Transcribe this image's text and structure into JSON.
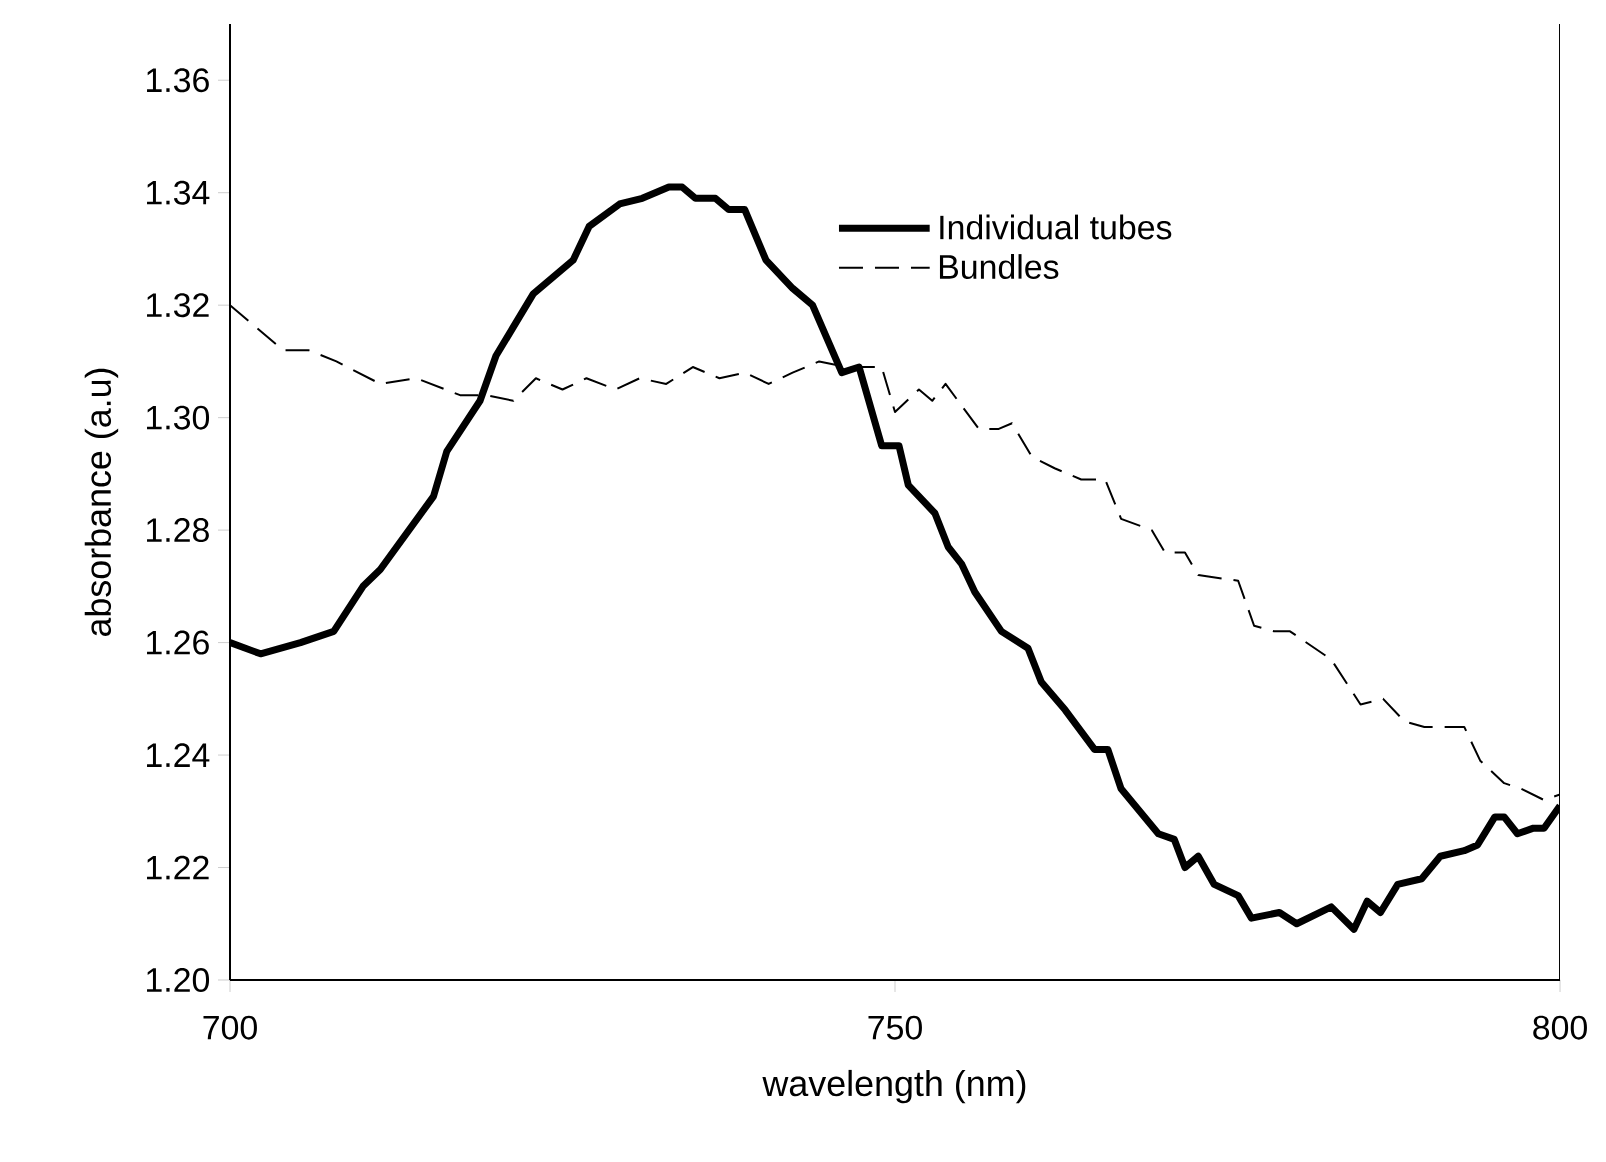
{
  "chart_data": {
    "type": "line",
    "xlabel": "wavelength (nm)",
    "ylabel": "absorbance (a.u)",
    "xlim": [
      700,
      800
    ],
    "xticks": [
      700,
      750,
      800
    ],
    "ylim": [
      1.2,
      1.37
    ],
    "yticks": [
      {
        "value": 1.2,
        "label": "1.20"
      },
      {
        "value": 1.22,
        "label": "1.22"
      },
      {
        "value": 1.24,
        "label": "1.24"
      },
      {
        "value": 1.26,
        "label": "1.26"
      },
      {
        "value": 1.28,
        "label": "1.28"
      },
      {
        "value": 1.3,
        "label": "1.30"
      },
      {
        "value": 1.32,
        "label": "1.32"
      },
      {
        "value": 1.34,
        "label": "1.34"
      },
      {
        "value": 1.36,
        "label": "1.36"
      }
    ],
    "grid": false,
    "legend": "top right",
    "marker": "none",
    "series": [
      {
        "name": "Individual tubes",
        "color": "#000000",
        "line_style": "solid",
        "x": [
          700,
          702.3,
          705.3,
          707.8,
          710,
          711.3,
          715.3,
          716.3,
          718.8,
          720,
          722.8,
          725.8,
          727,
          729.3,
          731,
          733,
          734,
          735,
          736.5,
          737.5,
          738.7,
          740.3,
          742.3,
          743.8,
          746,
          747.3,
          749,
          750.3,
          751,
          753,
          754,
          755,
          756,
          758,
          760,
          761,
          762.8,
          765,
          766,
          767,
          769.8,
          771,
          771.8,
          772.8,
          774,
          775.8,
          776.8,
          778.9,
          780.2,
          782.8,
          784.5,
          785.5,
          786.5,
          787.8,
          789.6,
          791,
          792.8,
          793.8,
          795.1,
          795.8,
          796.8,
          798,
          798.8,
          800
        ],
        "values": [
          1.26,
          1.258,
          1.26,
          1.262,
          1.27,
          1.273,
          1.286,
          1.294,
          1.303,
          1.311,
          1.322,
          1.328,
          1.334,
          1.338,
          1.339,
          1.341,
          1.341,
          1.339,
          1.339,
          1.337,
          1.337,
          1.328,
          1.323,
          1.32,
          1.308,
          1.309,
          1.295,
          1.295,
          1.288,
          1.283,
          1.277,
          1.274,
          1.269,
          1.262,
          1.259,
          1.253,
          1.248,
          1.241,
          1.241,
          1.234,
          1.226,
          1.225,
          1.22,
          1.222,
          1.217,
          1.215,
          1.211,
          1.212,
          1.21,
          1.213,
          1.209,
          1.214,
          1.212,
          1.217,
          1.218,
          1.222,
          1.223,
          1.224,
          1.229,
          1.229,
          1.226,
          1.227,
          1.227,
          1.231
        ]
      },
      {
        "name": "Bundles",
        "color": "#000000",
        "line_style": "dashed",
        "x": [
          700,
          702,
          704,
          705.9,
          708,
          711.3,
          714,
          717.3,
          719.3,
          721.3,
          723,
          725,
          726.8,
          729,
          730.8,
          732.8,
          734.8,
          736.8,
          738.7,
          740.5,
          742.3,
          744.3,
          746.3,
          749,
          750,
          751.8,
          752.8,
          753.8,
          756.3,
          757.8,
          758.8,
          760.3,
          762,
          764,
          765.8,
          767,
          769.3,
          770.3,
          771.8,
          772.8,
          775.8,
          777,
          778.5,
          779.7,
          782.8,
          785,
          786.7,
          788.3,
          789.8,
          791.3,
          792.8,
          794,
          795.8,
          797.1,
          798.8,
          800
        ],
        "values": [
          1.32,
          1.316,
          1.312,
          1.312,
          1.31,
          1.306,
          1.307,
          1.304,
          1.304,
          1.303,
          1.307,
          1.305,
          1.307,
          1.305,
          1.307,
          1.306,
          1.309,
          1.307,
          1.308,
          1.306,
          1.308,
          1.31,
          1.309,
          1.309,
          1.301,
          1.305,
          1.303,
          1.306,
          1.298,
          1.298,
          1.299,
          1.293,
          1.291,
          1.289,
          1.289,
          1.282,
          1.28,
          1.276,
          1.276,
          1.272,
          1.271,
          1.263,
          1.262,
          1.262,
          1.257,
          1.249,
          1.25,
          1.246,
          1.245,
          1.245,
          1.245,
          1.239,
          1.235,
          1.234,
          1.232,
          1.233
        ]
      }
    ]
  }
}
